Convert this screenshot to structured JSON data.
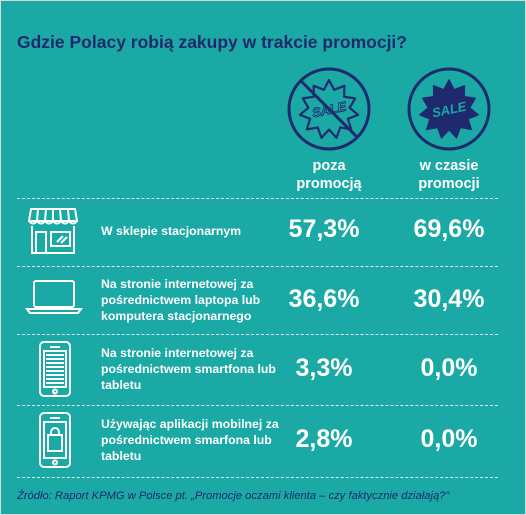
{
  "title": "Gdzie Polacy robią zakupy w trakcie promocji?",
  "colors": {
    "background": "#1aa9a4",
    "navy": "#1f2a6e",
    "text": "#ffffff"
  },
  "badge_text": "SALE",
  "chart_data": {
    "type": "table",
    "columns": [
      "poza\npromocją",
      "w czasie\npromocji"
    ],
    "rows": [
      {
        "label": "W sklepie stacjonarnym",
        "icon": "store-icon",
        "values": [
          "57,3%",
          "69,6%"
        ]
      },
      {
        "label": "Na stronie internetowej za pośrednictwem laptopa lub komputera stacjonarnego",
        "icon": "laptop-icon",
        "values": [
          "36,6%",
          "30,4%"
        ]
      },
      {
        "label": "Na stronie internetowej za pośrednictwem smartfona lub tabletu",
        "icon": "smartphone-icon",
        "values": [
          "3,3%",
          "0,0%"
        ]
      },
      {
        "label": "Używając aplikacji mobilnej za pośrednictwem smarfona lub tabletu",
        "icon": "mobile-app-shopping-icon",
        "values": [
          "2,8%",
          "0,0%"
        ]
      }
    ]
  },
  "source": "Źródło: Raport KPMG w Polsce pt. „Promocje oczami klienta – czy faktycznie działają?”"
}
